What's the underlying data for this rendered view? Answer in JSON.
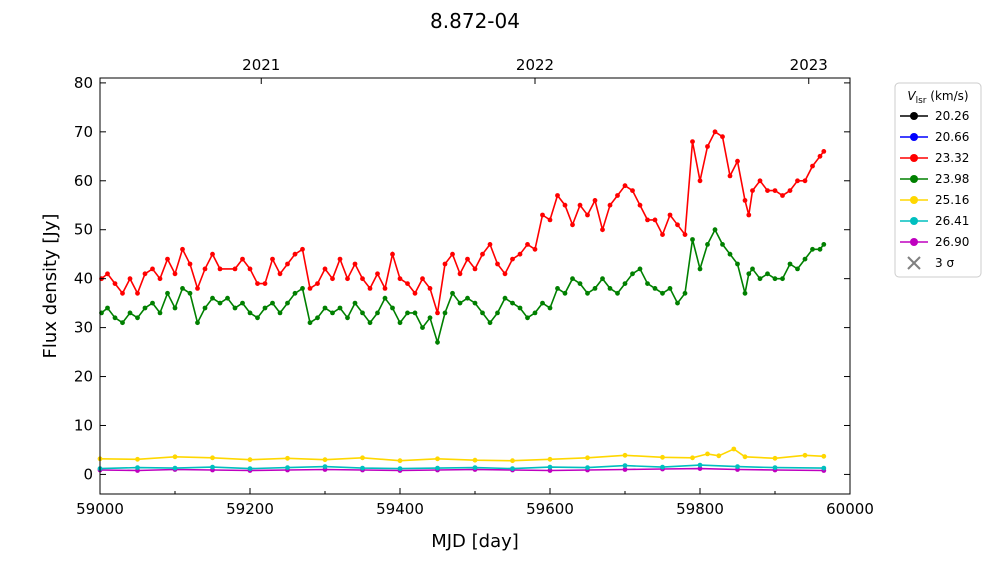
{
  "chart_data": {
    "type": "line",
    "title": "8.872-04",
    "xlabel": "MJD [day]",
    "ylabel": "Flux density [Jy]",
    "xlim": [
      59000,
      60000
    ],
    "ylim": [
      -4,
      81
    ],
    "x_ticks": [
      59000,
      59200,
      59400,
      59600,
      59800,
      60000
    ],
    "y_ticks": [
      0,
      10,
      20,
      30,
      40,
      50,
      60,
      70,
      80
    ],
    "top_axis_ticks": [
      {
        "label": "2021",
        "mjd": 59215
      },
      {
        "label": "2022",
        "mjd": 59580
      },
      {
        "label": "2023",
        "mjd": 59945
      }
    ],
    "legend": {
      "title_main": "V",
      "title_sub": "lsr",
      "title_unit": " (km/s)",
      "placement": "outside-right-top",
      "entries": [
        {
          "label": "20.26",
          "color": "#000000"
        },
        {
          "label": "20.66",
          "color": "#0000ff"
        },
        {
          "label": "23.32",
          "color": "#ff0000"
        },
        {
          "label": "23.98",
          "color": "#008000"
        },
        {
          "label": "25.16",
          "color": "#ffd700"
        },
        {
          "label": "26.41",
          "color": "#00bfbf"
        },
        {
          "label": "26.90",
          "color": "#bf00bf"
        },
        {
          "label": "3 σ",
          "color": "#808080",
          "marker": "x"
        }
      ]
    },
    "series": [
      {
        "name": "23.32",
        "color": "#ff0000",
        "points": [
          [
            59002,
            40
          ],
          [
            59010,
            41
          ],
          [
            59020,
            39
          ],
          [
            59030,
            37
          ],
          [
            59040,
            40
          ],
          [
            59050,
            37
          ],
          [
            59060,
            41
          ],
          [
            59070,
            42
          ],
          [
            59080,
            40
          ],
          [
            59090,
            44
          ],
          [
            59100,
            41
          ],
          [
            59110,
            46
          ],
          [
            59120,
            43
          ],
          [
            59130,
            38
          ],
          [
            59140,
            42
          ],
          [
            59150,
            45
          ],
          [
            59160,
            42
          ],
          [
            59180,
            42
          ],
          [
            59190,
            44
          ],
          [
            59200,
            42
          ],
          [
            59210,
            39
          ],
          [
            59220,
            39
          ],
          [
            59230,
            44
          ],
          [
            59240,
            41
          ],
          [
            59250,
            43
          ],
          [
            59260,
            45
          ],
          [
            59270,
            46
          ],
          [
            59280,
            38
          ],
          [
            59290,
            39
          ],
          [
            59300,
            42
          ],
          [
            59310,
            40
          ],
          [
            59320,
            44
          ],
          [
            59330,
            40
          ],
          [
            59340,
            43
          ],
          [
            59350,
            40
          ],
          [
            59360,
            38
          ],
          [
            59370,
            41
          ],
          [
            59380,
            38
          ],
          [
            59390,
            45
          ],
          [
            59400,
            40
          ],
          [
            59410,
            39
          ],
          [
            59420,
            37
          ],
          [
            59430,
            40
          ],
          [
            59440,
            38
          ],
          [
            59450,
            33
          ],
          [
            59460,
            43
          ],
          [
            59470,
            45
          ],
          [
            59480,
            41
          ],
          [
            59490,
            44
          ],
          [
            59500,
            42
          ],
          [
            59510,
            45
          ],
          [
            59520,
            47
          ],
          [
            59530,
            43
          ],
          [
            59540,
            41
          ],
          [
            59550,
            44
          ],
          [
            59560,
            45
          ],
          [
            59570,
            47
          ],
          [
            59580,
            46
          ],
          [
            59590,
            53
          ],
          [
            59600,
            52
          ],
          [
            59610,
            57
          ],
          [
            59620,
            55
          ],
          [
            59630,
            51
          ],
          [
            59640,
            55
          ],
          [
            59650,
            53
          ],
          [
            59660,
            56
          ],
          [
            59670,
            50
          ],
          [
            59680,
            55
          ],
          [
            59690,
            57
          ],
          [
            59700,
            59
          ],
          [
            59710,
            58
          ],
          [
            59720,
            55
          ],
          [
            59730,
            52
          ],
          [
            59740,
            52
          ],
          [
            59750,
            49
          ],
          [
            59760,
            53
          ],
          [
            59770,
            51
          ],
          [
            59780,
            49
          ],
          [
            59790,
            68
          ],
          [
            59800,
            60
          ],
          [
            59810,
            67
          ],
          [
            59820,
            70
          ],
          [
            59830,
            69
          ],
          [
            59840,
            61
          ],
          [
            59850,
            64
          ],
          [
            59860,
            56
          ],
          [
            59865,
            53
          ],
          [
            59870,
            58
          ],
          [
            59880,
            60
          ],
          [
            59890,
            58
          ],
          [
            59900,
            58
          ],
          [
            59910,
            57
          ],
          [
            59920,
            58
          ],
          [
            59930,
            60
          ],
          [
            59940,
            60
          ],
          [
            59950,
            63
          ],
          [
            59960,
            65
          ],
          [
            59965,
            66
          ]
        ]
      },
      {
        "name": "23.98",
        "color": "#008000",
        "points": [
          [
            59002,
            33
          ],
          [
            59010,
            34
          ],
          [
            59020,
            32
          ],
          [
            59030,
            31
          ],
          [
            59040,
            33
          ],
          [
            59050,
            32
          ],
          [
            59060,
            34
          ],
          [
            59070,
            35
          ],
          [
            59080,
            33
          ],
          [
            59090,
            37
          ],
          [
            59100,
            34
          ],
          [
            59110,
            38
          ],
          [
            59120,
            37
          ],
          [
            59130,
            31
          ],
          [
            59140,
            34
          ],
          [
            59150,
            36
          ],
          [
            59160,
            35
          ],
          [
            59170,
            36
          ],
          [
            59180,
            34
          ],
          [
            59190,
            35
          ],
          [
            59200,
            33
          ],
          [
            59210,
            32
          ],
          [
            59220,
            34
          ],
          [
            59230,
            35
          ],
          [
            59240,
            33
          ],
          [
            59250,
            35
          ],
          [
            59260,
            37
          ],
          [
            59270,
            38
          ],
          [
            59280,
            31
          ],
          [
            59290,
            32
          ],
          [
            59300,
            34
          ],
          [
            59310,
            33
          ],
          [
            59320,
            34
          ],
          [
            59330,
            32
          ],
          [
            59340,
            35
          ],
          [
            59350,
            33
          ],
          [
            59360,
            31
          ],
          [
            59370,
            33
          ],
          [
            59380,
            36
          ],
          [
            59390,
            34
          ],
          [
            59400,
            31
          ],
          [
            59410,
            33
          ],
          [
            59420,
            33
          ],
          [
            59430,
            30
          ],
          [
            59440,
            32
          ],
          [
            59450,
            27
          ],
          [
            59460,
            33
          ],
          [
            59470,
            37
          ],
          [
            59480,
            35
          ],
          [
            59490,
            36
          ],
          [
            59500,
            35
          ],
          [
            59510,
            33
          ],
          [
            59520,
            31
          ],
          [
            59530,
            33
          ],
          [
            59540,
            36
          ],
          [
            59550,
            35
          ],
          [
            59560,
            34
          ],
          [
            59570,
            32
          ],
          [
            59580,
            33
          ],
          [
            59590,
            35
          ],
          [
            59600,
            34
          ],
          [
            59610,
            38
          ],
          [
            59620,
            37
          ],
          [
            59630,
            40
          ],
          [
            59640,
            39
          ],
          [
            59650,
            37
          ],
          [
            59660,
            38
          ],
          [
            59670,
            40
          ],
          [
            59680,
            38
          ],
          [
            59690,
            37
          ],
          [
            59700,
            39
          ],
          [
            59710,
            41
          ],
          [
            59720,
            42
          ],
          [
            59730,
            39
          ],
          [
            59740,
            38
          ],
          [
            59750,
            37
          ],
          [
            59760,
            38
          ],
          [
            59770,
            35
          ],
          [
            59780,
            37
          ],
          [
            59790,
            48
          ],
          [
            59800,
            42
          ],
          [
            59810,
            47
          ],
          [
            59820,
            50
          ],
          [
            59830,
            47
          ],
          [
            59840,
            45
          ],
          [
            59850,
            43
          ],
          [
            59860,
            37
          ],
          [
            59865,
            41
          ],
          [
            59870,
            42
          ],
          [
            59880,
            40
          ],
          [
            59890,
            41
          ],
          [
            59900,
            40
          ],
          [
            59910,
            40
          ],
          [
            59920,
            43
          ],
          [
            59930,
            42
          ],
          [
            59940,
            44
          ],
          [
            59950,
            46
          ],
          [
            59960,
            46
          ],
          [
            59965,
            47
          ]
        ]
      },
      {
        "name": "25.16",
        "color": "#ffd700",
        "points": [
          [
            59000,
            3.2
          ],
          [
            59050,
            3.1
          ],
          [
            59100,
            3.6
          ],
          [
            59150,
            3.4
          ],
          [
            59200,
            3.0
          ],
          [
            59250,
            3.3
          ],
          [
            59300,
            3.0
          ],
          [
            59350,
            3.4
          ],
          [
            59400,
            2.8
          ],
          [
            59450,
            3.2
          ],
          [
            59500,
            2.9
          ],
          [
            59550,
            2.8
          ],
          [
            59600,
            3.1
          ],
          [
            59650,
            3.4
          ],
          [
            59700,
            3.9
          ],
          [
            59750,
            3.5
          ],
          [
            59790,
            3.4
          ],
          [
            59810,
            4.2
          ],
          [
            59825,
            3.8
          ],
          [
            59845,
            5.2
          ],
          [
            59860,
            3.6
          ],
          [
            59900,
            3.3
          ],
          [
            59940,
            3.9
          ],
          [
            59965,
            3.7
          ]
        ]
      },
      {
        "name": "26.41",
        "color": "#00bfbf",
        "points": [
          [
            59000,
            1.2
          ],
          [
            59050,
            1.4
          ],
          [
            59100,
            1.3
          ],
          [
            59150,
            1.5
          ],
          [
            59200,
            1.2
          ],
          [
            59250,
            1.4
          ],
          [
            59300,
            1.6
          ],
          [
            59350,
            1.3
          ],
          [
            59400,
            1.2
          ],
          [
            59450,
            1.3
          ],
          [
            59500,
            1.4
          ],
          [
            59550,
            1.2
          ],
          [
            59600,
            1.5
          ],
          [
            59650,
            1.4
          ],
          [
            59700,
            1.8
          ],
          [
            59750,
            1.5
          ],
          [
            59800,
            1.9
          ],
          [
            59850,
            1.6
          ],
          [
            59900,
            1.4
          ],
          [
            59965,
            1.3
          ]
        ]
      },
      {
        "name": "26.90",
        "color": "#bf00bf",
        "points": [
          [
            59000,
            0.9
          ],
          [
            59050,
            0.8
          ],
          [
            59100,
            1.0
          ],
          [
            59150,
            0.9
          ],
          [
            59200,
            0.8
          ],
          [
            59250,
            0.9
          ],
          [
            59300,
            1.0
          ],
          [
            59350,
            0.9
          ],
          [
            59400,
            0.8
          ],
          [
            59450,
            0.9
          ],
          [
            59500,
            1.0
          ],
          [
            59550,
            0.9
          ],
          [
            59600,
            0.8
          ],
          [
            59650,
            0.9
          ],
          [
            59700,
            1.0
          ],
          [
            59750,
            1.1
          ],
          [
            59800,
            1.2
          ],
          [
            59850,
            1.0
          ],
          [
            59900,
            0.9
          ],
          [
            59965,
            0.8
          ]
        ]
      }
    ]
  }
}
